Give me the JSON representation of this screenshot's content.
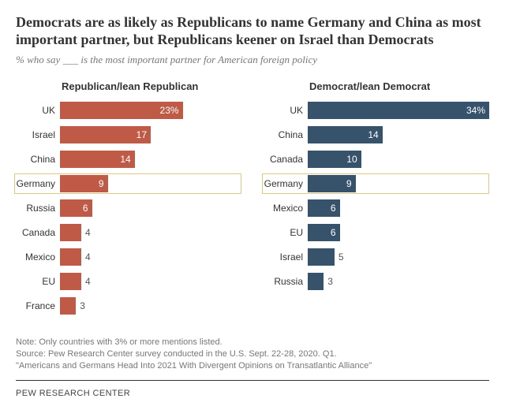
{
  "title": "Democrats are as likely as Republicans to name Germany and China as most important partner, but Republicans keener on Israel than Democrats",
  "subtitle": "% who say ___ is the most important partner for American foreign policy",
  "title_fontsize": 18,
  "subtitle_fontsize": 13,
  "colors": {
    "republican": "#bf5a47",
    "democrat": "#37536c",
    "highlight_border": "#dcc87f",
    "text": "#333333",
    "muted": "#777777",
    "background": "#ffffff"
  },
  "chart_config": {
    "type": "bar",
    "orientation": "horizontal",
    "max_value": 34,
    "label_fontsize": 12,
    "value_fontsize": 12,
    "header_fontsize": 13
  },
  "left": {
    "header": "Republican/lean Republican",
    "color": "#bf5a47",
    "data": [
      {
        "label": "UK",
        "value": 23,
        "display": "23%",
        "highlighted": false
      },
      {
        "label": "Israel",
        "value": 17,
        "display": "17",
        "highlighted": false
      },
      {
        "label": "China",
        "value": 14,
        "display": "14",
        "highlighted": false
      },
      {
        "label": "Germany",
        "value": 9,
        "display": "9",
        "highlighted": true
      },
      {
        "label": "Russia",
        "value": 6,
        "display": "6",
        "highlighted": false
      },
      {
        "label": "Canada",
        "value": 4,
        "display": "4",
        "highlighted": false
      },
      {
        "label": "Mexico",
        "value": 4,
        "display": "4",
        "highlighted": false
      },
      {
        "label": "EU",
        "value": 4,
        "display": "4",
        "highlighted": false
      },
      {
        "label": "France",
        "value": 3,
        "display": "3",
        "highlighted": false
      }
    ]
  },
  "right": {
    "header": "Democrat/lean Democrat",
    "color": "#37536c",
    "data": [
      {
        "label": "UK",
        "value": 34,
        "display": "34%",
        "highlighted": false
      },
      {
        "label": "China",
        "value": 14,
        "display": "14",
        "highlighted": false
      },
      {
        "label": "Canada",
        "value": 10,
        "display": "10",
        "highlighted": false
      },
      {
        "label": "Germany",
        "value": 9,
        "display": "9",
        "highlighted": true
      },
      {
        "label": "Mexico",
        "value": 6,
        "display": "6",
        "highlighted": false
      },
      {
        "label": "EU",
        "value": 6,
        "display": "6",
        "highlighted": false
      },
      {
        "label": "Israel",
        "value": 5,
        "display": "5",
        "highlighted": false
      },
      {
        "label": "Russia",
        "value": 3,
        "display": "3",
        "highlighted": false
      }
    ]
  },
  "note_lines": [
    "Note: Only countries with 3% or more mentions listed.",
    "Source: Pew Research Center survey conducted in the U.S. Sept. 22-28, 2020. Q1.",
    "\"Americans and Germans Head Into 2021 With Divergent Opinions on Transatlantic Alliance\""
  ],
  "attribution": "PEW RESEARCH CENTER",
  "note_fontsize": 11,
  "attribution_fontsize": 11
}
